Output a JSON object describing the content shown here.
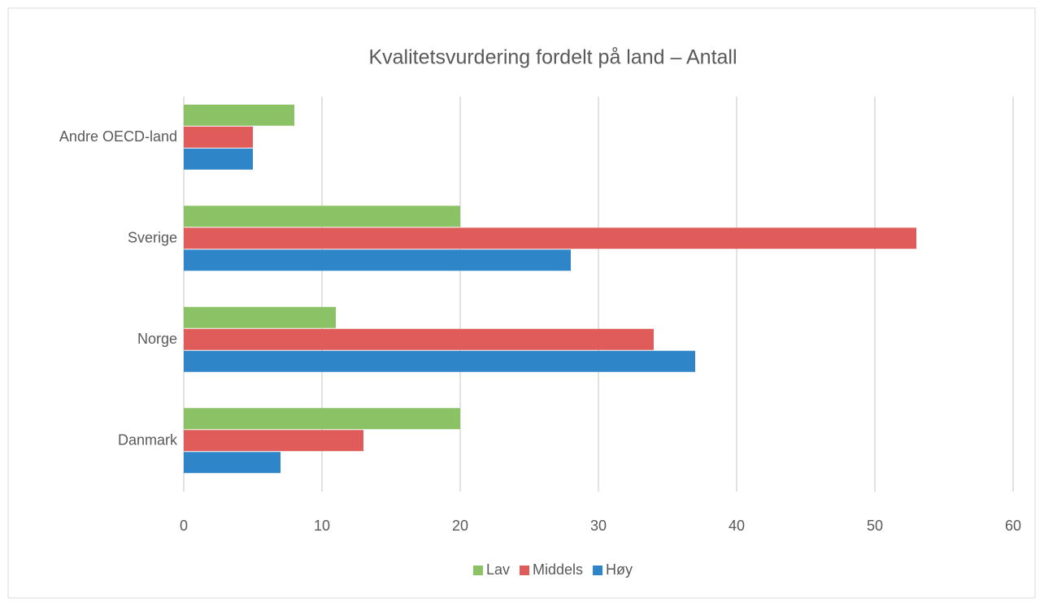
{
  "chart_data": {
    "type": "bar",
    "orientation": "horizontal",
    "title": "Kvalitetsvurdering fordelt på land – Antall",
    "categories": [
      "Andre OECD-land",
      "Sverige",
      "Norge",
      "Danmark"
    ],
    "series": [
      {
        "name": "Lav",
        "color": "#8bc265",
        "values": [
          8,
          20,
          11,
          20
        ]
      },
      {
        "name": "Middels",
        "color": "#e05c5a",
        "values": [
          5,
          53,
          34,
          13
        ]
      },
      {
        "name": "Høy",
        "color": "#2e86c8",
        "values": [
          5,
          28,
          37,
          7
        ]
      }
    ],
    "xlim": [
      0,
      60
    ],
    "xticks": [
      0,
      10,
      20,
      30,
      40,
      50,
      60
    ],
    "grid": true,
    "legend": "bottom"
  }
}
